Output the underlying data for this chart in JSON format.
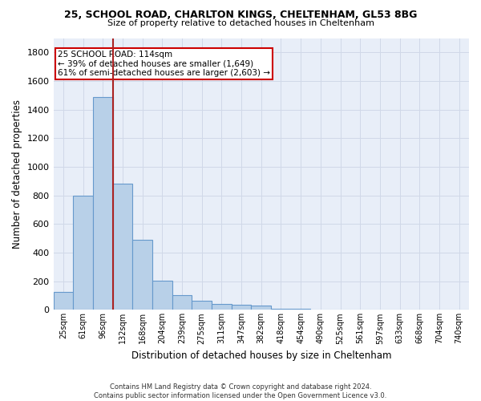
{
  "title_line1": "25, SCHOOL ROAD, CHARLTON KINGS, CHELTENHAM, GL53 8BG",
  "title_line2": "Size of property relative to detached houses in Cheltenham",
  "xlabel": "Distribution of detached houses by size in Cheltenham",
  "ylabel": "Number of detached properties",
  "footnote": "Contains HM Land Registry data © Crown copyright and database right 2024.\nContains public sector information licensed under the Open Government Licence v3.0.",
  "bin_labels": [
    "25sqm",
    "61sqm",
    "96sqm",
    "132sqm",
    "168sqm",
    "204sqm",
    "239sqm",
    "275sqm",
    "311sqm",
    "347sqm",
    "382sqm",
    "418sqm",
    "454sqm",
    "490sqm",
    "525sqm",
    "561sqm",
    "597sqm",
    "633sqm",
    "668sqm",
    "704sqm",
    "740sqm"
  ],
  "bar_heights": [
    125,
    800,
    1490,
    880,
    490,
    205,
    105,
    65,
    40,
    35,
    28,
    5,
    5,
    0,
    0,
    0,
    0,
    0,
    0,
    0,
    0
  ],
  "bar_color": "#b8d0e8",
  "bar_edge_color": "#6699cc",
  "grid_color": "#d0d8e8",
  "vline_color": "#aa2222",
  "annotation_text": "25 SCHOOL ROAD: 114sqm\n← 39% of detached houses are smaller (1,649)\n61% of semi-detached houses are larger (2,603) →",
  "annotation_box_color": "white",
  "annotation_box_edge_color": "#cc0000",
  "ylim": [
    0,
    1900
  ],
  "yticks": [
    0,
    200,
    400,
    600,
    800,
    1000,
    1200,
    1400,
    1600,
    1800
  ],
  "background_color": "#e8eef8"
}
